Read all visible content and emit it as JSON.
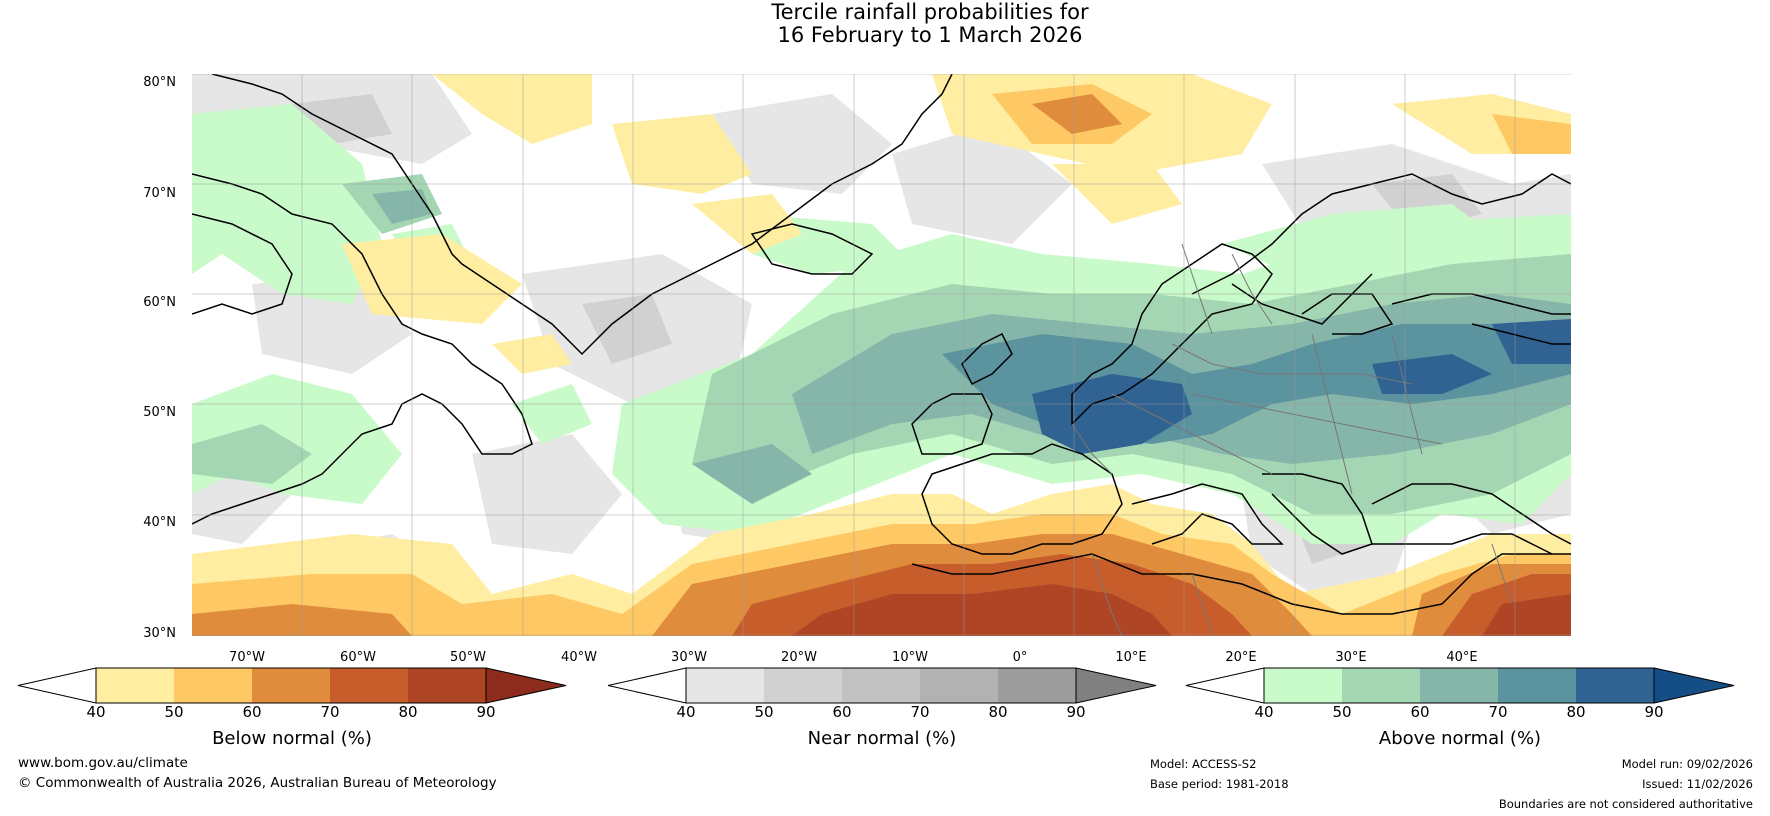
{
  "title": {
    "line1": "Tercile rainfall probabilities for",
    "line2": "16 February to 1 March 2026"
  },
  "map": {
    "lat_labels": [
      "80°N",
      "70°N",
      "60°N",
      "50°N",
      "40°N",
      "30°N"
    ],
    "lon_labels": [
      "70°W",
      "60°W",
      "50°W",
      "40°W",
      "30°W",
      "20°W",
      "10°W",
      "0°",
      "10°E",
      "20°E",
      "30°E",
      "40°E"
    ],
    "region": {
      "lon_min": -80,
      "lon_max": 45,
      "lat_min": 30,
      "lat_max": 81
    },
    "colors": {
      "below": [
        "#ffeea1",
        "#fec965",
        "#e08c3d",
        "#c85d2c",
        "#ae4626",
        "#8d2c1c"
      ],
      "near": [
        "#e6e6e6",
        "#d1d1d1",
        "#c2c2c2",
        "#b2b2b2",
        "#9c9c9c",
        "#808080"
      ],
      "above": [
        "#c8fbc9",
        "#a5d6b4",
        "#86b6a9",
        "#5b939f",
        "#306292",
        "#154e85"
      ]
    }
  },
  "colorbars": [
    {
      "title": "Below normal (%)",
      "ticks": [
        "40",
        "50",
        "60",
        "70",
        "80",
        "90"
      ]
    },
    {
      "title": "Near normal (%)",
      "ticks": [
        "40",
        "50",
        "60",
        "70",
        "80",
        "90"
      ]
    },
    {
      "title": "Above normal (%)",
      "ticks": [
        "40",
        "50",
        "60",
        "70",
        "80",
        "90"
      ]
    }
  ],
  "footer": {
    "website": "www.bom.gov.au/climate",
    "copyright": "© Commonwealth of Australia 2026, Australian Bureau of Meteorology",
    "model": "Model: ACCESS-S2",
    "base_period": "Base period: 1981-2018",
    "model_run": "Model run: 09/02/2026",
    "issued": "Issued: 11/02/2026",
    "disclaimer": "Boundaries are not considered authoritative"
  }
}
